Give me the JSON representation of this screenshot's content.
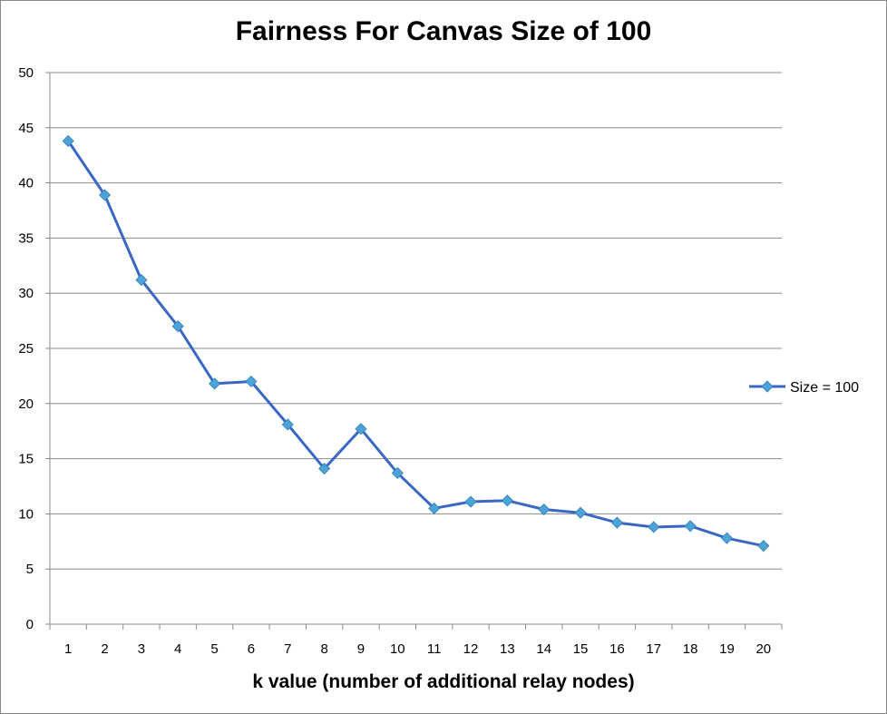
{
  "chart_data": {
    "type": "line",
    "title": "Fairness For Canvas Size of 100",
    "xlabel": "k value (number of additional relay nodes)",
    "ylabel": "",
    "categories": [
      "1",
      "2",
      "3",
      "4",
      "5",
      "6",
      "7",
      "8",
      "9",
      "10",
      "11",
      "12",
      "13",
      "14",
      "15",
      "16",
      "17",
      "18",
      "19",
      "20"
    ],
    "ylim": [
      0,
      50
    ],
    "yticks": [
      "0",
      "5",
      "10",
      "15",
      "20",
      "25",
      "30",
      "35",
      "40",
      "45",
      "50"
    ],
    "grid": true,
    "legend_position": "right",
    "series": [
      {
        "name": "Size = 100",
        "color": "#3A67C4",
        "marker_color": "#4BA3D8",
        "values": [
          43.8,
          38.9,
          31.2,
          27.0,
          21.8,
          22.0,
          18.1,
          14.1,
          17.7,
          13.7,
          10.5,
          11.1,
          11.2,
          10.4,
          10.1,
          9.2,
          8.8,
          8.9,
          7.8,
          7.1
        ]
      }
    ]
  }
}
